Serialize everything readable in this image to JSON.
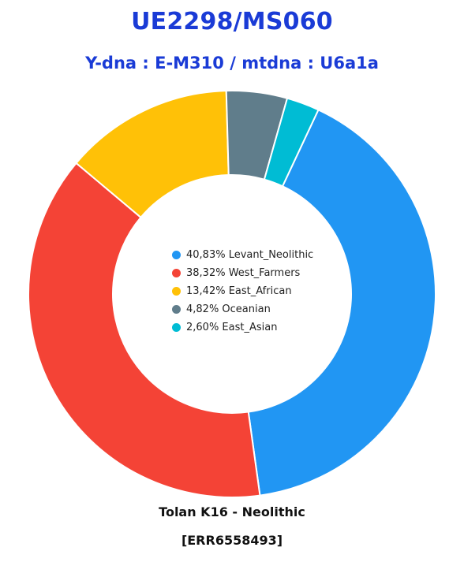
{
  "header": {
    "title": "UE2298/MS060",
    "subtitle": "Y-dna : E-M310 / mtdna : U6a1a"
  },
  "footer": {
    "line1": "Tolan K16 - Neolithic",
    "line2": "[ERR6558493]"
  },
  "chart_data": {
    "type": "pie",
    "donut": true,
    "legend_position": "center",
    "slices": [
      {
        "label": "40,83% Levant_Neolithic",
        "value": 40.83,
        "color": "#2196f3"
      },
      {
        "label": "38,32% West_Farmers",
        "value": 38.32,
        "color": "#f44336"
      },
      {
        "label": "13,42% East_African",
        "value": 13.42,
        "color": "#ffc107"
      },
      {
        "label": "4,82% Oceanian",
        "value": 4.82,
        "color": "#607d8b"
      },
      {
        "label": "2,60% East_Asian",
        "value": 2.6,
        "color": "#00bcd4"
      }
    ]
  }
}
